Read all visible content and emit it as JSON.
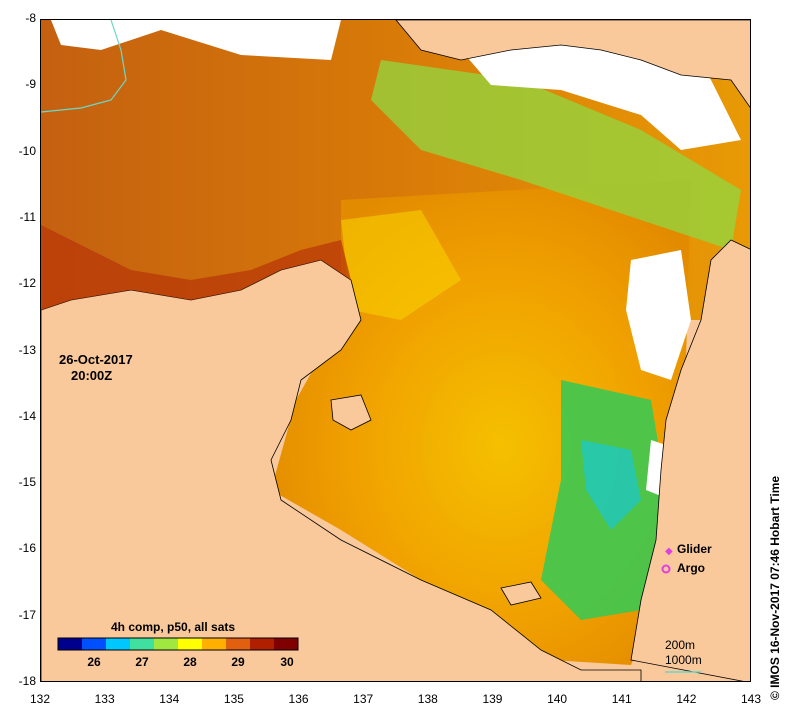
{
  "map": {
    "lat_range": [
      -18,
      -8
    ],
    "lon_range": [
      132,
      143
    ],
    "lat_ticks": [
      "-8",
      "-9",
      "-10",
      "-11",
      "-12",
      "-13",
      "-14",
      "-15",
      "-16",
      "-17",
      "-18"
    ],
    "lon_ticks": [
      "132",
      "133",
      "134",
      "135",
      "136",
      "137",
      "138",
      "139",
      "140",
      "141",
      "142",
      "143"
    ],
    "date": "26-Oct-2017",
    "time": "20:00Z",
    "land_color": "#f9c89b",
    "no_data_color": "#ffffff"
  },
  "legend": {
    "glider": "Glider",
    "argo": "Argo",
    "glider_color": "#e040e0",
    "argo_color": "#e040e0"
  },
  "colorbar": {
    "title": "4h comp, p50, all sats",
    "labels": [
      "26",
      "27",
      "28",
      "29",
      "30"
    ],
    "colors": [
      "#00008f",
      "#0050ff",
      "#00c8ff",
      "#40e0a0",
      "#a0e840",
      "#ffff00",
      "#ffb000",
      "#e06010",
      "#b02000",
      "#800000"
    ]
  },
  "contours": {
    "line1": "200m",
    "line2": "1000m",
    "color": "#6bd8c8"
  },
  "credit": "© IMOS 16-Nov-2017 07:46 Hobart Time"
}
